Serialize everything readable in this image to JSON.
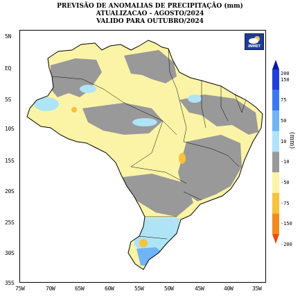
{
  "title": {
    "line1": "PREVISÃO DE ANOMALIAS DE PRECIPITAÇÃO (mm)",
    "line2": "ATUALIZACAO - AGOSTO/2024",
    "line3": "VALIDO PARA OUTUBRO/2024"
  },
  "logo": {
    "text": "INMET",
    "icon": "cloud-sun-icon"
  },
  "axes": {
    "lat_labels": [
      "5N",
      "EQ",
      "5S",
      "10S",
      "15S",
      "20S",
      "25S",
      "30S",
      "35S"
    ],
    "lon_labels": [
      "75W",
      "70W",
      "65W",
      "60W",
      "55W",
      "50W",
      "45W",
      "40W",
      "35W"
    ]
  },
  "legend": {
    "unit": "(mm)",
    "bins": [
      {
        "label": "200",
        "color": "#0a1aa0"
      },
      {
        "label": "150",
        "color": "#2040d8"
      },
      {
        "label": "75",
        "color": "#3a78f0"
      },
      {
        "label": "50",
        "color": "#6fb4f5"
      },
      {
        "label": "10",
        "color": "#aee4f6"
      },
      {
        "label": "-10",
        "color": "#999999"
      },
      {
        "label": "-50",
        "color": "#fbf4a6"
      },
      {
        "label": "-75",
        "color": "#f7c23e"
      },
      {
        "label": "-150",
        "color": "#f28a22"
      },
      {
        "label": "-200",
        "color": "#ee4a0e"
      }
    ]
  },
  "colors": {
    "near_normal": "#999999",
    "slight_negative": "#fbf4a6",
    "moderate_negative": "#f7c23e",
    "slight_positive": "#aee4f6",
    "moderate_positive": "#6fb4f5"
  }
}
